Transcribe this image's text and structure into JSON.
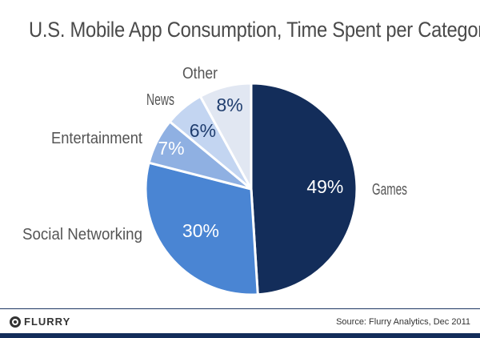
{
  "chart_data": {
    "type": "pie",
    "title": "U.S. Mobile App Consumption, Time Spent per Category",
    "categories": [
      "Games",
      "Social Networking",
      "Entertainment",
      "News",
      "Other"
    ],
    "values": [
      49,
      30,
      7,
      6,
      8
    ],
    "labels": [
      "49%",
      "30%",
      "7%",
      "6%",
      "8%"
    ],
    "colors": [
      "#132d5a",
      "#4a85d3",
      "#8fb0e2",
      "#c3d5f1",
      "#e1e7f2"
    ],
    "label_colors": [
      "#ffffff",
      "#ffffff",
      "#ffffff",
      "#1f3d6e",
      "#1f3d6e"
    ],
    "start": "top",
    "direction": "clockwise"
  },
  "footer": {
    "logo": "FLURRY",
    "source": "Source: Flurry Analytics, Dec 2011",
    "band_color": "#132d5a"
  }
}
